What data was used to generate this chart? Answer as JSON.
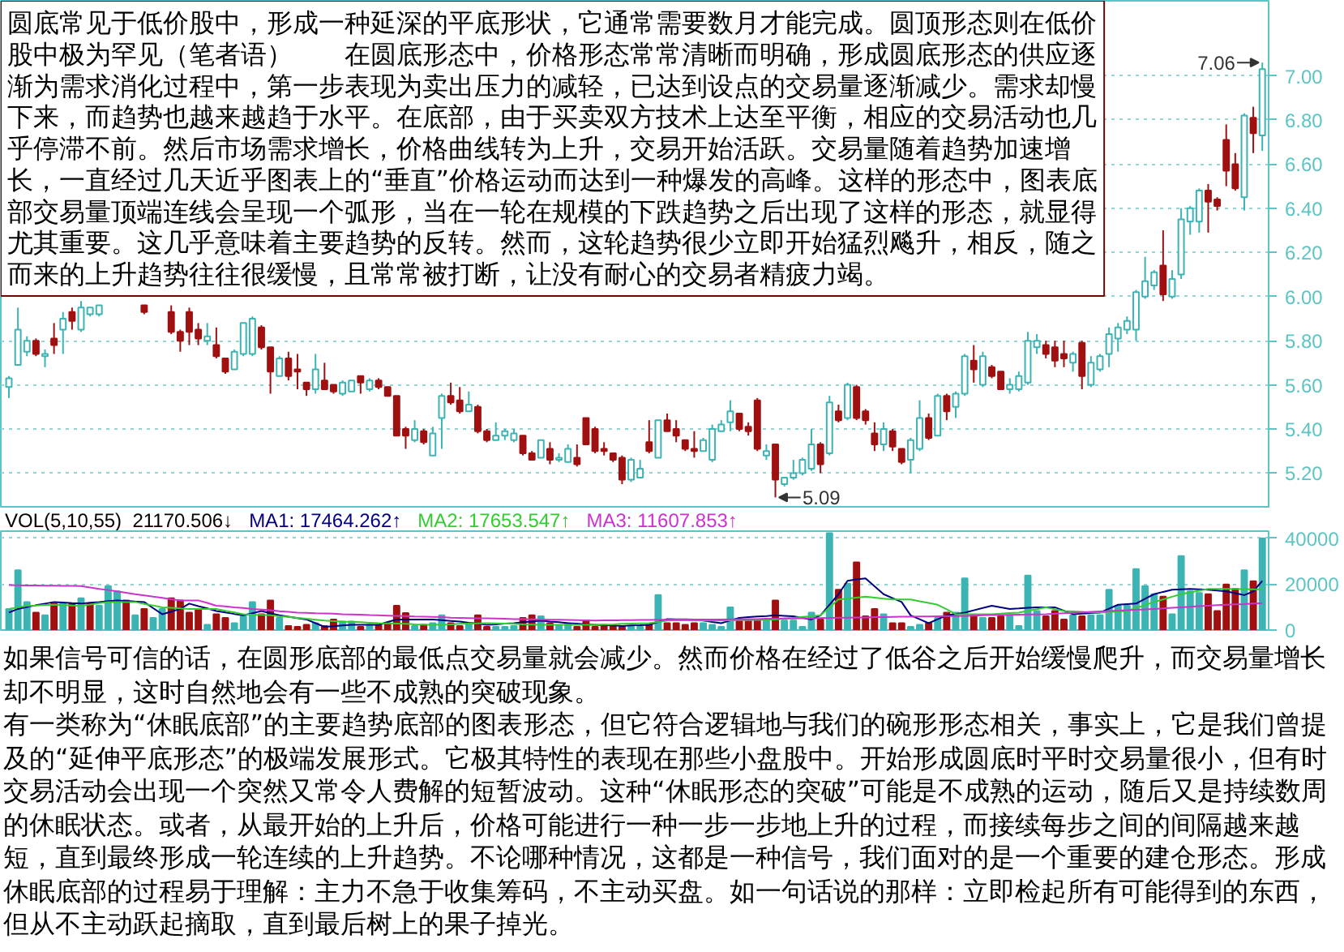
{
  "chart_data": [
    {
      "type": "candlestick",
      "categories": [
        null,
        null,
        null,
        null,
        null,
        null,
        null,
        null,
        null,
        null,
        null,
        null,
        null,
        null,
        null,
        null,
        null,
        null,
        null,
        null,
        null,
        null,
        null,
        null,
        null,
        null,
        null,
        null,
        null,
        null,
        null,
        null,
        null,
        null,
        null,
        null,
        null,
        null,
        null,
        null,
        null,
        null,
        null,
        null,
        null,
        null,
        null,
        null,
        null,
        null,
        null,
        null,
        null,
        null,
        null,
        null,
        null,
        null,
        null,
        null,
        null,
        null,
        null,
        null,
        null,
        null,
        null,
        null,
        null,
        null,
        null,
        null,
        null,
        null,
        null,
        null,
        null,
        null,
        null,
        null,
        null,
        null,
        null,
        null,
        null,
        null,
        null,
        null,
        null,
        null,
        null,
        null,
        null,
        null,
        null,
        null,
        null,
        null,
        null,
        null,
        null,
        null,
        null,
        null,
        null,
        null,
        null,
        null,
        null,
        null,
        null,
        null,
        null,
        null,
        null,
        null,
        null,
        null,
        null,
        null,
        null,
        null,
        null,
        null,
        null,
        null,
        null,
        null,
        null,
        null,
        null,
        null,
        null,
        null,
        null,
        null,
        null,
        null,
        null,
        null
      ],
      "ohlc": [
        [
          5.59,
          5.64,
          5.54,
          5.63
        ],
        [
          5.69,
          5.95,
          5.69,
          5.85
        ],
        [
          5.75,
          5.82,
          5.73,
          5.8
        ],
        [
          5.8,
          5.81,
          5.73,
          5.74
        ],
        [
          5.73,
          5.76,
          5.68,
          5.74
        ],
        [
          5.81,
          5.88,
          5.74,
          5.78
        ],
        [
          5.85,
          5.93,
          5.74,
          5.9
        ],
        [
          5.93,
          5.95,
          5.85,
          5.89
        ],
        [
          5.85,
          5.98,
          5.84,
          5.95
        ],
        [
          5.92,
          5.95,
          5.91,
          5.95
        ],
        [
          5.92,
          5.96,
          5.91,
          5.96
        ],
        null,
        null,
        null,
        null,
        [
          5.96,
          5.96,
          5.92,
          5.93
        ],
        null,
        null,
        [
          5.93,
          5.96,
          5.83,
          5.84
        ],
        [
          5.84,
          5.85,
          5.75,
          5.8
        ],
        [
          5.93,
          5.95,
          5.78,
          5.84
        ],
        [
          5.85,
          5.88,
          5.78,
          5.81
        ],
        [
          5.8,
          5.88,
          5.78,
          5.82
        ],
        [
          5.78,
          5.86,
          5.72,
          5.73
        ],
        [
          5.72,
          5.72,
          5.65,
          5.66
        ],
        [
          5.67,
          5.76,
          5.67,
          5.75
        ],
        [
          5.74,
          5.88,
          5.73,
          5.88
        ],
        [
          5.74,
          5.91,
          5.73,
          5.9
        ],
        [
          5.86,
          5.87,
          5.76,
          5.77
        ],
        [
          5.77,
          5.77,
          5.56,
          5.66
        ],
        [
          5.64,
          5.73,
          5.64,
          5.72
        ],
        [
          5.72,
          5.75,
          5.62,
          5.64
        ],
        [
          5.67,
          5.74,
          5.58,
          5.66
        ],
        [
          5.61,
          5.61,
          5.55,
          5.58
        ],
        [
          5.58,
          5.74,
          5.56,
          5.67
        ],
        [
          5.62,
          5.7,
          5.58,
          5.58
        ],
        [
          5.6,
          5.6,
          5.56,
          5.57
        ],
        [
          5.56,
          5.62,
          5.55,
          5.61
        ],
        [
          5.57,
          5.62,
          5.57,
          5.62
        ],
        [
          5.64,
          5.64,
          5.56,
          5.61
        ],
        [
          5.58,
          5.63,
          5.57,
          5.62
        ],
        [
          5.62,
          5.63,
          5.58,
          5.59
        ],
        [
          5.59,
          5.59,
          5.55,
          5.55
        ],
        [
          5.55,
          5.55,
          5.37,
          5.37
        ],
        [
          5.4,
          5.41,
          5.31,
          5.37
        ],
        [
          5.35,
          5.44,
          5.34,
          5.4
        ],
        [
          5.39,
          5.4,
          5.33,
          5.34
        ],
        [
          5.28,
          5.41,
          5.28,
          5.38
        ],
        [
          5.45,
          5.56,
          5.31,
          5.55
        ],
        [
          5.55,
          5.61,
          5.51,
          5.52
        ],
        [
          5.53,
          5.59,
          5.47,
          5.48
        ],
        [
          5.48,
          5.57,
          5.48,
          5.51
        ],
        [
          5.5,
          5.51,
          5.38,
          5.39
        ],
        [
          5.39,
          5.4,
          5.34,
          5.35
        ],
        [
          5.35,
          5.43,
          5.35,
          5.37
        ],
        [
          5.37,
          5.4,
          5.35,
          5.39
        ],
        [
          5.35,
          5.4,
          5.34,
          5.38
        ],
        [
          5.37,
          5.37,
          5.28,
          5.29
        ],
        [
          5.29,
          5.3,
          5.26,
          5.26
        ],
        [
          5.27,
          5.35,
          5.27,
          5.35
        ],
        [
          5.31,
          5.34,
          5.24,
          5.26
        ],
        [
          5.26,
          5.29,
          5.25,
          5.27
        ],
        [
          5.25,
          5.33,
          5.25,
          5.31
        ],
        [
          5.27,
          5.33,
          5.23,
          5.24
        ],
        [
          5.45,
          5.45,
          5.33,
          5.33
        ],
        [
          5.4,
          5.41,
          5.29,
          5.3
        ],
        [
          5.31,
          5.34,
          5.28,
          5.3
        ],
        [
          5.29,
          5.29,
          5.25,
          5.26
        ],
        [
          5.27,
          5.28,
          5.15,
          5.17
        ],
        [
          5.17,
          5.27,
          5.16,
          5.26
        ],
        [
          5.18,
          5.26,
          5.18,
          5.22
        ],
        [
          5.34,
          5.44,
          5.29,
          5.3
        ],
        [
          5.27,
          5.44,
          5.27,
          5.44
        ],
        [
          5.44,
          5.47,
          5.39,
          5.39
        ],
        [
          5.4,
          5.44,
          5.34,
          5.37
        ],
        [
          5.35,
          5.35,
          5.3,
          5.31
        ],
        [
          5.31,
          5.39,
          5.27,
          5.3
        ],
        [
          5.3,
          5.36,
          5.3,
          5.35
        ],
        [
          5.26,
          5.42,
          5.25,
          5.4
        ],
        [
          5.39,
          5.44,
          5.39,
          5.42
        ],
        [
          5.43,
          5.53,
          5.39,
          5.48
        ],
        [
          5.47,
          5.47,
          5.39,
          5.4
        ],
        [
          5.41,
          5.43,
          5.37,
          5.39
        ],
        [
          5.53,
          5.54,
          5.3,
          5.31
        ],
        [
          5.28,
          5.33,
          5.26,
          5.3
        ],
        [
          5.33,
          5.33,
          5.09,
          5.17
        ],
        [
          5.15,
          5.18,
          5.14,
          5.18
        ],
        [
          5.18,
          5.26,
          5.17,
          5.2
        ],
        [
          5.2,
          5.27,
          5.19,
          5.26
        ],
        [
          5.22,
          5.4,
          5.21,
          5.33
        ],
        [
          5.33,
          5.34,
          5.2,
          5.24
        ],
        [
          5.29,
          5.55,
          5.28,
          5.52
        ],
        [
          5.48,
          5.51,
          5.43,
          5.44
        ],
        [
          5.45,
          5.61,
          5.44,
          5.6
        ],
        [
          5.59,
          5.6,
          5.44,
          5.45
        ],
        [
          5.48,
          5.49,
          5.42,
          5.44
        ],
        [
          5.38,
          5.43,
          5.3,
          5.33
        ],
        [
          5.33,
          5.43,
          5.3,
          5.4
        ],
        [
          5.39,
          5.4,
          5.3,
          5.32
        ],
        [
          5.31,
          5.31,
          5.24,
          5.25
        ],
        [
          5.26,
          5.36,
          5.2,
          5.35
        ],
        [
          5.31,
          5.53,
          5.3,
          5.45
        ],
        [
          5.45,
          5.47,
          5.35,
          5.36
        ],
        [
          5.37,
          5.56,
          5.37,
          5.55
        ],
        [
          5.55,
          5.56,
          5.44,
          5.48
        ],
        [
          5.5,
          5.57,
          5.45,
          5.56
        ],
        [
          5.56,
          5.74,
          5.55,
          5.73
        ],
        [
          5.71,
          5.78,
          5.61,
          5.67
        ],
        [
          5.6,
          5.75,
          5.59,
          5.73
        ],
        [
          5.68,
          5.69,
          5.63,
          5.64
        ],
        [
          5.66,
          5.66,
          5.58,
          5.58
        ],
        [
          5.58,
          5.63,
          5.56,
          5.6
        ],
        [
          5.58,
          5.66,
          5.57,
          5.64
        ],
        [
          5.61,
          5.84,
          5.6,
          5.8
        ],
        [
          5.77,
          5.83,
          5.74,
          5.8
        ],
        [
          5.78,
          5.8,
          5.72,
          5.74
        ],
        [
          5.77,
          5.8,
          5.68,
          5.71
        ],
        [
          5.74,
          5.8,
          5.68,
          5.72
        ],
        [
          5.7,
          5.75,
          5.66,
          5.74
        ],
        [
          5.79,
          5.8,
          5.58,
          5.64
        ],
        [
          5.6,
          5.73,
          5.59,
          5.7
        ],
        [
          5.67,
          5.74,
          5.66,
          5.73
        ],
        [
          5.74,
          5.86,
          5.68,
          5.83
        ],
        [
          5.81,
          5.88,
          5.75,
          5.86
        ],
        [
          5.85,
          5.91,
          5.83,
          5.89
        ],
        [
          5.85,
          6.03,
          5.8,
          6.02
        ],
        [
          6.0,
          6.18,
          5.99,
          6.07
        ],
        [
          6.05,
          6.12,
          6.03,
          6.11
        ],
        [
          6.14,
          6.3,
          5.98,
          6.01
        ],
        [
          6.0,
          6.12,
          5.99,
          6.08
        ],
        [
          6.1,
          6.4,
          6.08,
          6.35
        ],
        [
          6.34,
          6.41,
          6.28,
          6.4
        ],
        [
          6.34,
          6.49,
          6.29,
          6.48
        ],
        [
          6.48,
          6.51,
          6.29,
          6.43
        ],
        [
          6.44,
          6.45,
          6.39,
          6.41
        ],
        [
          6.71,
          6.78,
          6.5,
          6.57
        ],
        [
          6.6,
          6.65,
          6.48,
          6.49
        ],
        [
          6.45,
          6.83,
          6.39,
          6.82
        ],
        [
          6.81,
          6.86,
          6.65,
          6.74
        ],
        [
          6.73,
          7.06,
          6.66,
          7.03
        ]
      ],
      "colors": [
        "#3cb4b4",
        "#3cb4b4",
        "#3cb4b4",
        "#a01010",
        "#3cb4b4",
        "#a01010",
        "#3cb4b4",
        "#a01010",
        "#3cb4b4",
        "#3cb4b4",
        "#3cb4b4",
        null,
        null,
        null,
        null,
        "#a01010",
        null,
        null,
        "#a01010",
        "#a01010",
        "#a01010",
        "#a01010",
        "#3cb4b4",
        "#a01010",
        "#a01010",
        "#3cb4b4",
        "#3cb4b4",
        "#3cb4b4",
        "#a01010",
        "#a01010",
        "#3cb4b4",
        "#a01010",
        "#a01010",
        "#a01010",
        "#3cb4b4",
        "#a01010",
        "#a01010",
        "#3cb4b4",
        "#3cb4b4",
        "#a01010",
        "#3cb4b4",
        "#a01010",
        "#a01010",
        "#a01010",
        "#a01010",
        "#3cb4b4",
        "#a01010",
        "#3cb4b4",
        "#3cb4b4",
        "#a01010",
        "#a01010",
        "#3cb4b4",
        "#a01010",
        "#a01010",
        "#3cb4b4",
        "#3cb4b4",
        "#3cb4b4",
        "#a01010",
        "#a01010",
        "#3cb4b4",
        "#a01010",
        "#3cb4b4",
        "#3cb4b4",
        "#a01010",
        "#a01010",
        "#a01010",
        "#a01010",
        "#a01010",
        "#a01010",
        "#3cb4b4",
        "#3cb4b4",
        "#a01010",
        "#3cb4b4",
        "#a01010",
        "#a01010",
        "#a01010",
        "#a01010",
        "#3cb4b4",
        "#3cb4b4",
        "#3cb4b4",
        "#3cb4b4",
        "#a01010",
        "#a01010",
        "#a01010",
        "#3cb4b4",
        "#a01010",
        "#3cb4b4",
        "#3cb4b4",
        "#3cb4b4",
        "#3cb4b4",
        "#a01010",
        "#3cb4b4",
        "#a01010",
        "#3cb4b4",
        "#a01010",
        "#a01010",
        "#a01010",
        "#3cb4b4",
        "#a01010",
        "#a01010",
        "#3cb4b4",
        "#3cb4b4",
        "#a01010",
        "#3cb4b4",
        "#a01010",
        "#3cb4b4",
        "#3cb4b4",
        "#a01010",
        "#3cb4b4",
        "#a01010",
        "#a01010",
        "#3cb4b4",
        "#3cb4b4",
        "#3cb4b4",
        "#3cb4b4",
        "#a01010",
        "#a01010",
        "#a01010",
        "#3cb4b4",
        "#a01010",
        "#3cb4b4",
        "#3cb4b4",
        "#3cb4b4",
        "#3cb4b4",
        "#3cb4b4",
        "#3cb4b4",
        "#3cb4b4",
        "#3cb4b4",
        "#a01010",
        "#3cb4b4",
        "#3cb4b4",
        "#3cb4b4",
        "#3cb4b4",
        "#a01010",
        "#a01010",
        "#a01010",
        "#a01010",
        "#3cb4b4",
        "#a01010",
        "#3cb4b4"
      ],
      "ylim": [
        5.04,
        7.34
      ],
      "yticks": [
        {
          "value": 5.2,
          "label": "5.20"
        },
        {
          "value": 5.4,
          "label": "5.40"
        },
        {
          "value": 5.6,
          "label": "5.60"
        },
        {
          "value": 5.8,
          "label": "5.80"
        },
        {
          "value": 6.0,
          "label": "6.00"
        },
        {
          "value": 6.2,
          "label": "6.20"
        },
        {
          "value": 6.4,
          "label": "6.40"
        },
        {
          "value": 6.6,
          "label": "6.60"
        },
        {
          "value": 6.8,
          "label": "6.80"
        },
        {
          "value": 7.0,
          "label": "7.00"
        }
      ],
      "grid": "y",
      "annotations": [
        "圆底常见于低价股中，形成一种延深的平底形状，它通常需要数月才能完成。圆顶形态则在低价股中极为罕见（笔者语）　　在圆底形态中，价格形态常常清晰而明确，形成圆底形态的供应逐渐为需求消化过程中，第一步表现为卖出压力的减轻，已达到设点的交易量逐渐减少。需求却慢下来，而趋势也越来越趋于水平。在底部，由于买卖双方技术上达至平衡，相应的交易活动也几乎停滞不前。然后市场需求增长，价格曲线转为上升，交易开始活跃。交易量随着趋势加速增长，一直经过几天近乎图表上的“垂直”价格运动而达到一种爆发的高峰。这样的形态中，图表底部交易量顶端连线会呈现一个弧形，当在一轮在规模的下跌趋势之后出现了这样的形态，就显得尤其重要。这几乎意味着主要趋势的反转。然而，这轮趋势很少立即开始猛烈飚升，相反，随之而来的上升趋势往往很缓慢，且常常被打断，让没有耐心的交易者精疲力竭。",
        "7.06",
        "5.09"
      ]
    },
    {
      "type": "bar",
      "title": "VOL(5,10,55)  21170.506↓",
      "categories": [
        null,
        null,
        null,
        null,
        null,
        null,
        null,
        null,
        null,
        null,
        null,
        null,
        null,
        null,
        null,
        null,
        null,
        null,
        null,
        null,
        null,
        null,
        null,
        null,
        null,
        null,
        null,
        null,
        null,
        null,
        null,
        null,
        null,
        null,
        null,
        null,
        null,
        null,
        null,
        null,
        null,
        null,
        null,
        null,
        null,
        null,
        null,
        null,
        null,
        null,
        null,
        null,
        null,
        null,
        null,
        null,
        null,
        null,
        null,
        null,
        null,
        null,
        null,
        null,
        null,
        null,
        null,
        null,
        null,
        null,
        null,
        null,
        null,
        null,
        null,
        null,
        null,
        null,
        null,
        null,
        null,
        null,
        null,
        null,
        null,
        null,
        null,
        null,
        null,
        null,
        null,
        null,
        null,
        null,
        null,
        null,
        null,
        null,
        null,
        null,
        null,
        null,
        null,
        null,
        null,
        null,
        null,
        null,
        null,
        null,
        null,
        null,
        null,
        null,
        null,
        null,
        null,
        null,
        null,
        null,
        null,
        null,
        null,
        null,
        null,
        null,
        null,
        null,
        null,
        null,
        null,
        null,
        null,
        null,
        null,
        null,
        null,
        null,
        null,
        null
      ],
      "series": [
        {
          "type": "bar",
          "values": [
            9200,
            26000,
            12200,
            7600,
            6400,
            11500,
            11500,
            11500,
            13800,
            11500,
            10600,
            19100,
            16800,
            12900,
            6400,
            9200,
            5300,
            9200,
            13800,
            12900,
            7600,
            9200,
            2300,
            6900,
            5300,
            3000,
            6000,
            12200,
            6900,
            12900,
            5300,
            1800,
            1400,
            2300,
            3000,
            1800,
            4600,
            3700,
            3700,
            1400,
            2300,
            2300,
            3000,
            10600,
            7400,
            1800,
            2300,
            3000,
            6400,
            3000,
            1800,
            2800,
            6400,
            1400,
            1400,
            1400,
            1800,
            5300,
            6400,
            6000,
            3000,
            1800,
            3000,
            1400,
            4100,
            1400,
            2300,
            1800,
            1400,
            1400,
            1400,
            2300,
            15200,
            3000,
            3000,
            2300,
            3000,
            3000,
            2300,
            1400,
            9900,
            4100,
            4100,
            4600,
            4100,
            12900,
            4100,
            4100,
            1400,
            7600,
            4600,
            42100,
            17500,
            20200,
            29400,
            6000,
            9200,
            6900,
            3000,
            3000,
            1400,
            2300,
            3000,
            5300,
            7600,
            7600,
            22500,
            6400,
            5300,
            5300,
            6000,
            6400,
            1800,
            23700,
            8300,
            6000,
            8300,
            4600,
            6400,
            6000,
            6400,
            6400,
            17500,
            10600,
            10600,
            26500,
            19100,
            15600,
            14500,
            6900,
            32200,
            16800,
            16100,
            15600,
            8300,
            19800,
            17900,
            26000,
            21200,
            39800
          ],
          "colors": [
            "#3cb4b4",
            "#3cb4b4",
            "#3cb4b4",
            "#a01010",
            "#3cb4b4",
            "#a01010",
            "#3cb4b4",
            "#a01010",
            "#3cb4b4",
            "#a01010",
            "#3cb4b4",
            "#3cb4b4",
            "#3cb4b4",
            "#a01010",
            "#3cb4b4",
            "#a01010",
            "#3cb4b4",
            "#3cb4b4",
            "#a01010",
            "#a01010",
            "#a01010",
            "#a01010",
            "#3cb4b4",
            "#a01010",
            "#a01010",
            "#3cb4b4",
            "#3cb4b4",
            "#3cb4b4",
            "#a01010",
            "#a01010",
            "#3cb4b4",
            "#a01010",
            "#a01010",
            "#a01010",
            "#3cb4b4",
            "#a01010",
            "#a01010",
            "#3cb4b4",
            "#3cb4b4",
            "#a01010",
            "#3cb4b4",
            "#a01010",
            "#a01010",
            "#a01010",
            "#a01010",
            "#3cb4b4",
            "#a01010",
            "#3cb4b4",
            "#3cb4b4",
            "#a01010",
            "#a01010",
            "#3cb4b4",
            "#a01010",
            "#a01010",
            "#3cb4b4",
            "#3cb4b4",
            "#3cb4b4",
            "#a01010",
            "#a01010",
            "#3cb4b4",
            "#a01010",
            "#3cb4b4",
            "#3cb4b4",
            "#a01010",
            "#a01010",
            "#a01010",
            "#a01010",
            "#a01010",
            "#a01010",
            "#3cb4b4",
            "#3cb4b4",
            "#a01010",
            "#3cb4b4",
            "#a01010",
            "#a01010",
            "#a01010",
            "#a01010",
            "#3cb4b4",
            "#3cb4b4",
            "#3cb4b4",
            "#3cb4b4",
            "#a01010",
            "#a01010",
            "#a01010",
            "#3cb4b4",
            "#a01010",
            "#3cb4b4",
            "#3cb4b4",
            "#3cb4b4",
            "#3cb4b4",
            "#a01010",
            "#3cb4b4",
            "#a01010",
            "#3cb4b4",
            "#a01010",
            "#a01010",
            "#a01010",
            "#3cb4b4",
            "#a01010",
            "#a01010",
            "#3cb4b4",
            "#3cb4b4",
            "#a01010",
            "#3cb4b4",
            "#a01010",
            "#3cb4b4",
            "#3cb4b4",
            "#a01010",
            "#3cb4b4",
            "#a01010",
            "#a01010",
            "#3cb4b4",
            "#3cb4b4",
            "#3cb4b4",
            "#3cb4b4",
            "#a01010",
            "#a01010",
            "#a01010",
            "#3cb4b4",
            "#a01010",
            "#3cb4b4",
            "#3cb4b4",
            "#3cb4b4",
            "#3cb4b4",
            "#3cb4b4",
            "#3cb4b4",
            "#3cb4b4",
            "#3cb4b4",
            "#a01010",
            "#3cb4b4",
            "#3cb4b4",
            "#3cb4b4",
            "#3cb4b4",
            "#a01010",
            "#a01010",
            "#a01010",
            "#a01010",
            "#3cb4b4",
            "#a01010",
            "#3cb4b4"
          ]
        },
        {
          "type": "line",
          "name": "MA1: 17464.262↑",
          "color": "#000080",
          "values": [
            7600,
            9200,
            10000,
            10800,
            11500,
            12200,
            12000,
            11700,
            11500,
            11900,
            12200,
            12600,
            12900,
            12700,
            12400,
            12200,
            9500,
            6900,
            8000,
            9200,
            11500,
            10400,
            9400,
            8300,
            7700,
            7000,
            6400,
            7300,
            8300,
            7300,
            6400,
            5800,
            5200,
            4600,
            3000,
            1400,
            1700,
            2000,
            2300,
            2300,
            2300,
            2300,
            3500,
            4600,
            4600,
            4600,
            4600,
            4600,
            4300,
            4000,
            3700,
            3200,
            2800,
            2300,
            2500,
            2800,
            3000,
            3400,
            3700,
            4100,
            3700,
            3400,
            3000,
            2800,
            2500,
            2300,
            2100,
            2000,
            1800,
            2000,
            2100,
            2300,
            3500,
            4800,
            4700,
            4700,
            4600,
            4100,
            3500,
            3000,
            4200,
            5300,
            5600,
            5900,
            6100,
            6400,
            6200,
            6000,
            5300,
            4600,
            6400,
            11000,
            15600,
            21400,
            22000,
            22500,
            19000,
            15600,
            13900,
            12200,
            6400,
            4700,
            3000,
            4700,
            6400,
            7000,
            7600,
            8600,
            9600,
            10600,
            9900,
            9200,
            9400,
            9700,
            9900,
            9900,
            9900,
            8400,
            6900,
            7100,
            7400,
            7600,
            9300,
            11000,
            11300,
            11500,
            13600,
            15600,
            16600,
            17500,
            17700,
            17900,
            17700,
            17500,
            17200,
            16800,
            16000,
            15200,
            16800,
            21400
          ]
        },
        {
          "type": "line",
          "name": "MA2: 17653.547↑",
          "color": "#33cc33",
          "values": [
            9200,
            9900,
            10600,
            10700,
            10900,
            11000,
            10900,
            10700,
            10600,
            11100,
            11700,
            12200,
            12200,
            12200,
            12200,
            11400,
            10700,
            9900,
            9700,
            9400,
            9200,
            9200,
            9200,
            9200,
            8400,
            7700,
            6900,
            6700,
            6600,
            6400,
            6000,
            5700,
            5300,
            4900,
            4500,
            4100,
            3900,
            3700,
            3600,
            3400,
            3200,
            3000,
            2900,
            2800,
            2700,
            2500,
            2400,
            2300,
            2400,
            2500,
            2700,
            2800,
            2900,
            3000,
            2900,
            2800,
            2700,
            2500,
            2400,
            2300,
            2300,
            2300,
            2300,
            2300,
            2300,
            2300,
            2400,
            2500,
            2700,
            2800,
            2900,
            3000,
            3500,
            4100,
            4200,
            4200,
            4100,
            4100,
            4100,
            4100,
            4200,
            4300,
            4300,
            4400,
            4500,
            4600,
            5000,
            5300,
            5700,
            6000,
            6400,
            9900,
            13300,
            13700,
            14100,
            14500,
            14100,
            13700,
            13300,
            13300,
            13300,
            12500,
            11800,
            11000,
            9000,
            6900,
            6900,
            6900,
            6900,
            6900,
            7100,
            7400,
            7600,
            8400,
            9100,
            9900,
            9100,
            8300,
            8100,
            7900,
            7700,
            7600,
            7800,
            8100,
            8300,
            9600,
            10900,
            12200,
            13300,
            14500,
            15600,
            16400,
            17100,
            17900,
            17900,
            17900,
            17900,
            17800,
            17700,
            17700
          ]
        },
        {
          "type": "line",
          "name": "MA3: 11607.853↑",
          "color": "#cc33cc",
          "values": [
            19600,
            19500,
            19400,
            19400,
            19300,
            19300,
            19200,
            19200,
            19100,
            18500,
            17900,
            17400,
            16800,
            16200,
            15600,
            15100,
            14500,
            14000,
            13400,
            12900,
            12900,
            12900,
            11800,
            10600,
            10300,
            9900,
            9600,
            9200,
            8900,
            8600,
            8200,
            7900,
            7600,
            7500,
            7300,
            7200,
            7100,
            6900,
            6800,
            6700,
            6500,
            6400,
            6300,
            6200,
            6100,
            5900,
            5800,
            5700,
            5600,
            5400,
            5300,
            5200,
            5100,
            5100,
            5000,
            4900,
            4800,
            4800,
            4700,
            4600,
            4500,
            4500,
            4400,
            4300,
            4200,
            4100,
            4200,
            4200,
            4300,
            4300,
            4400,
            4400,
            4500,
            4500,
            4600,
            4600,
            4600,
            4600,
            4600,
            4600,
            4700,
            4700,
            4800,
            4800,
            4900,
            4900,
            5000,
            5000,
            5100,
            5100,
            5200,
            5300,
            5400,
            5400,
            5500,
            5500,
            5600,
            5600,
            5700,
            5800,
            5800,
            5900,
            5900,
            6000,
            6100,
            6100,
            6200,
            6300,
            6400,
            6500,
            6500,
            6600,
            6700,
            6800,
            6800,
            6900,
            7100,
            7300,
            7500,
            7700,
            7900,
            8100,
            8300,
            8500,
            8600,
            8800,
            9000,
            9200,
            9400,
            9700,
            9900,
            10100,
            10400,
            10600,
            10800,
            11000,
            11200,
            11300,
            11500,
            11600
          ]
        }
      ],
      "ylim": [
        0,
        43000
      ],
      "yticks": [
        0,
        20000,
        40000
      ],
      "grid": "y",
      "legend": "top left"
    },
    {
      "type": "other",
      "annotations": [
        "如果信号可信的话，在圆形底部的最低点交易量就会减少。然而价格在经过了低谷之后开始缓慢爬升，而交易量增长却不明显，这时自然地会有一些不成熟的突破现象。",
        "有一类称为“休眠底部”的主要趋势底部的图表形态，但它符合逻辑地与我们的碗形形态相关，事实上，它是我们曾提及的“延伸平底形态”的极端发展形式。它极其特性的表现在那些小盘股中。开始形成圆底时平时交易量很小，但有时交易活动会出现一个突然又常令人费解的短暂波动。这种“休眠形态的突破”可能是不成熟的运动，随后又是持续数周的休眠状态。或者，从最开始的上升后，价格可能进行一种一步一步地上升的过程，而接续每步之间的间隔越来越短，直到最终形成一轮连续的上升趋势。不论哪种情况，这都是一种信号，我们面对的是一个重要的建仓形态。形成休眠底部的过程易于理解：主力不急于收集筹码，不主动买盘。如一句话说的那样：立即检起所有可能得到的东西，但从不主动跃起摘取，直到最后树上的果子掉光。"
      ]
    }
  ]
}
